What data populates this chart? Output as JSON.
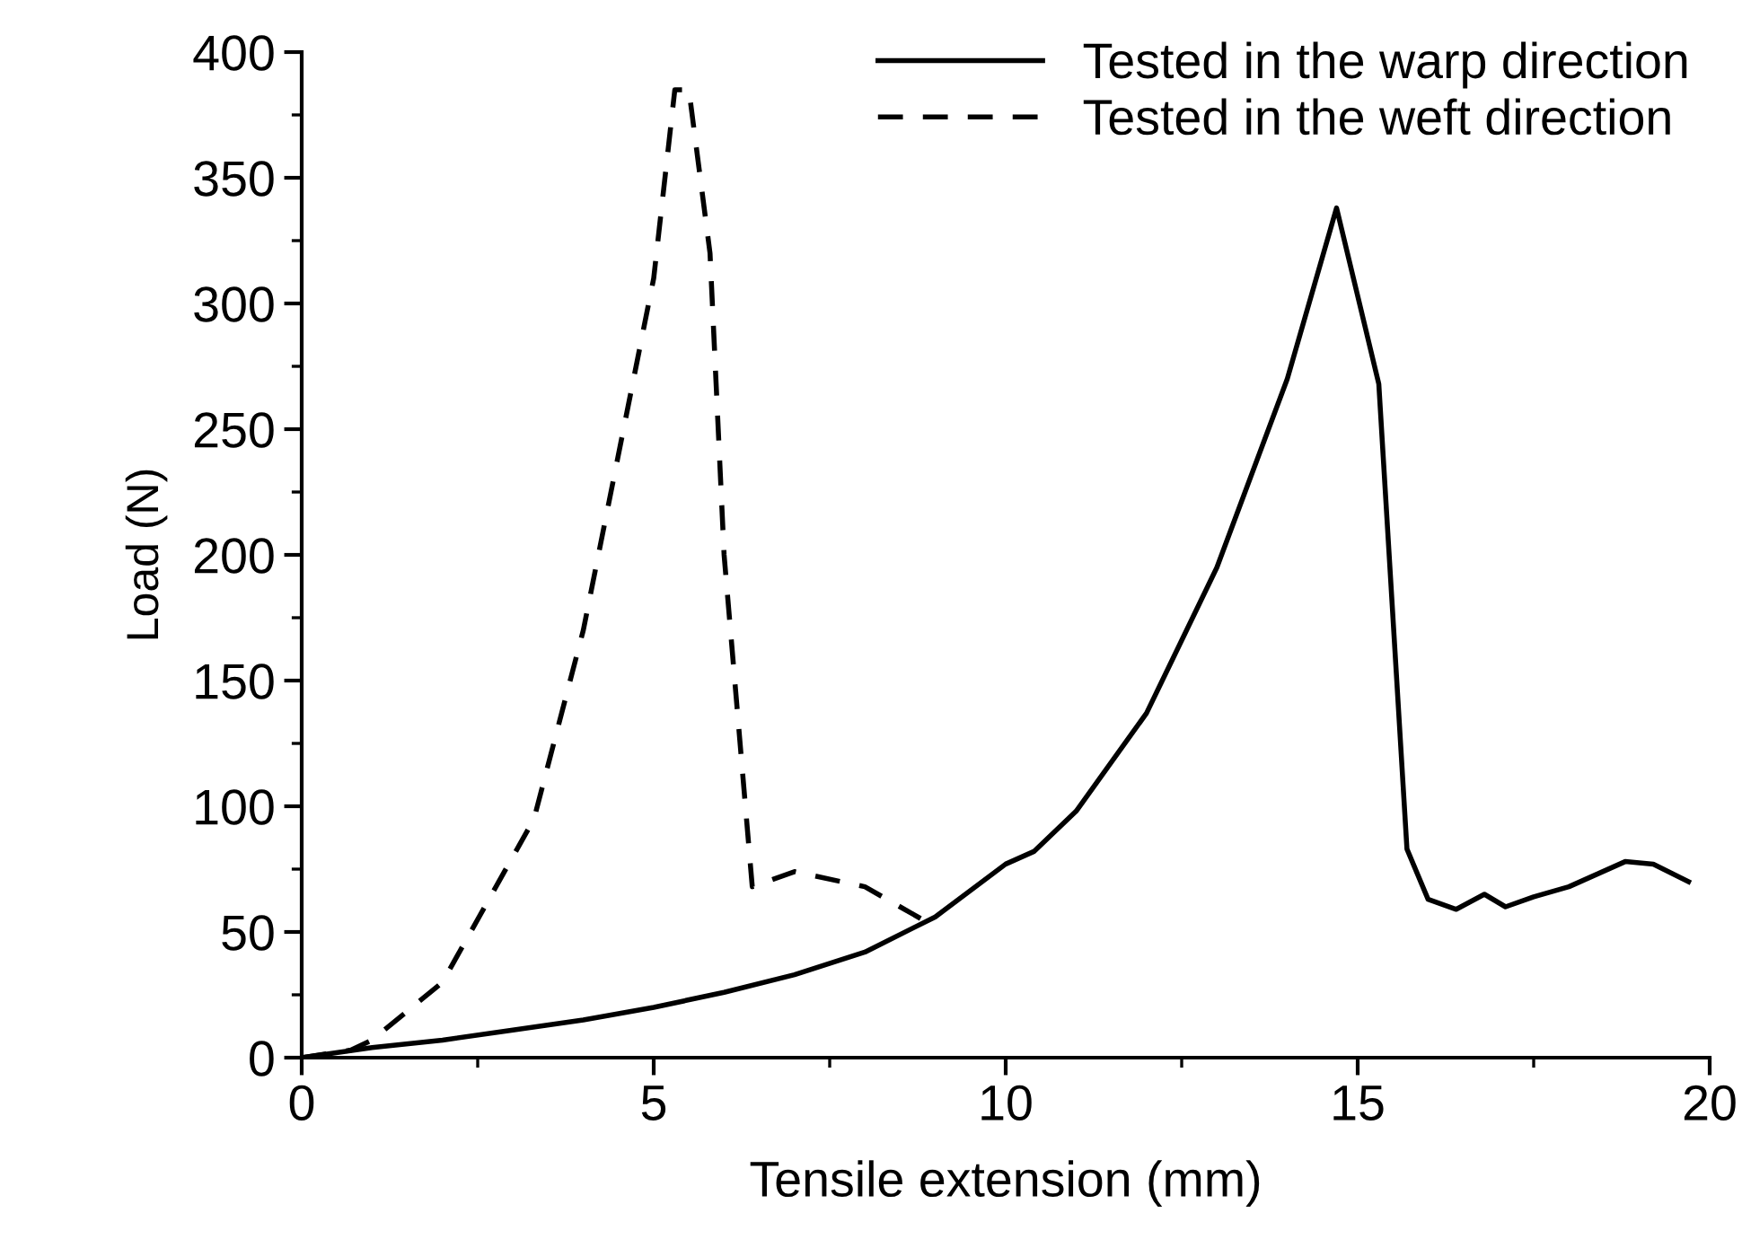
{
  "chart_data": {
    "type": "line",
    "xlabel": "Tensile extension (mm)",
    "ylabel": "Load (N)",
    "xlim": [
      0,
      20
    ],
    "xticks": [
      0,
      5,
      10,
      15,
      20
    ],
    "ylim": [
      0,
      400
    ],
    "yticks": [
      0,
      50,
      100,
      150,
      200,
      250,
      300,
      350,
      400
    ],
    "grid": false,
    "legend": "top right",
    "marker": "none",
    "series": [
      {
        "name": "Tested in the warp direction",
        "color": "#000000",
        "line_style": "solid",
        "x": [
          0,
          1,
          2,
          3,
          4,
          5,
          6,
          7,
          8,
          9,
          10,
          10.4,
          11,
          12,
          13,
          14,
          14.7,
          15.3,
          15.7,
          16,
          16.4,
          16.8,
          17.1,
          17.5,
          18,
          18.4,
          18.8,
          19.2,
          19.7
        ],
        "values": [
          0,
          4,
          7,
          11,
          15,
          20,
          26,
          33,
          42,
          56,
          77,
          82,
          98,
          137,
          195,
          270,
          338,
          268,
          83,
          63,
          59,
          65,
          60,
          64,
          68,
          73,
          78,
          77,
          70
        ]
      },
      {
        "name": "Tested in the weft direction",
        "color": "#000000",
        "line_style": "dashed",
        "x": [
          0,
          0.7,
          1,
          2,
          3,
          3.3,
          4,
          5,
          5.3,
          5.5,
          5.8,
          6,
          6.4,
          7,
          8,
          8.5,
          9
        ],
        "values": [
          0,
          3,
          7,
          30,
          80,
          95,
          170,
          310,
          385,
          385,
          320,
          200,
          68,
          74,
          68,
          60,
          52
        ]
      }
    ]
  }
}
